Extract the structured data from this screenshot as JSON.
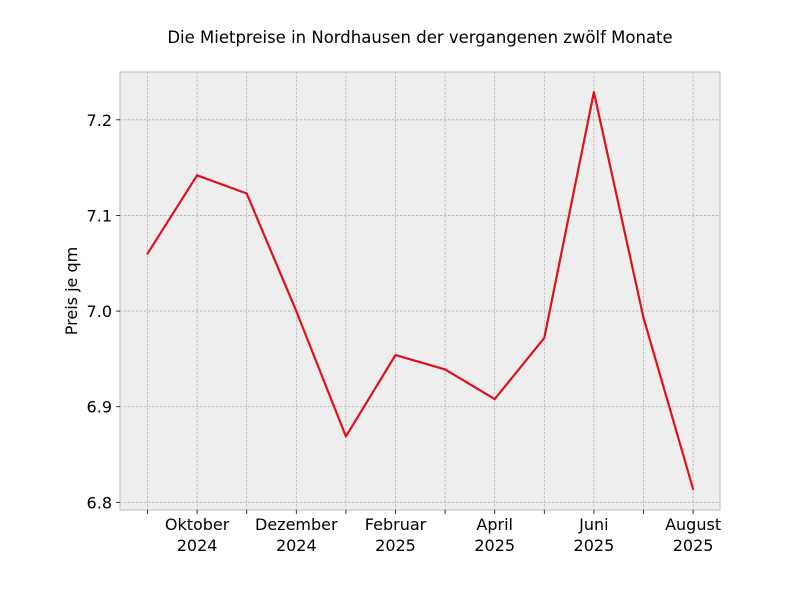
{
  "chart_data": {
    "type": "line",
    "title": "Die Mietpreise in Nordhausen der vergangenen zwölf Monate",
    "xlabel": "",
    "ylabel": "Preis je qm",
    "x": [
      "2024-09",
      "2024-10",
      "2024-11",
      "2024-12",
      "2025-01",
      "2025-02",
      "2025-03",
      "2025-04",
      "2025-05",
      "2025-06",
      "2025-07",
      "2025-08"
    ],
    "series": [
      {
        "values": [
          7.06,
          7.142,
          7.123,
          7.0,
          6.869,
          6.954,
          6.939,
          6.908,
          6.972,
          7.229,
          6.993,
          6.814
        ]
      }
    ],
    "ylim": [
      6.792,
      7.25
    ],
    "yticks": [
      6.8,
      6.9,
      7.0,
      7.1,
      7.2
    ],
    "ytick_labels": [
      "6.8",
      "6.9",
      "7.0",
      "7.1",
      "7.2"
    ],
    "xtick_labels": [
      {
        "month": "Oktober",
        "year": "2024"
      },
      {
        "month": "Dezember",
        "year": "2024"
      },
      {
        "month": "Februar",
        "year": "2025"
      },
      {
        "month": "April",
        "year": "2025"
      },
      {
        "month": "Juni",
        "year": "2025"
      },
      {
        "month": "August",
        "year": "2025"
      }
    ],
    "grid": true,
    "colors": {
      "line": "#e0101b",
      "background": "#eeeeee",
      "grid": "#b0b0b0",
      "frame": "#bcbcbc"
    }
  }
}
